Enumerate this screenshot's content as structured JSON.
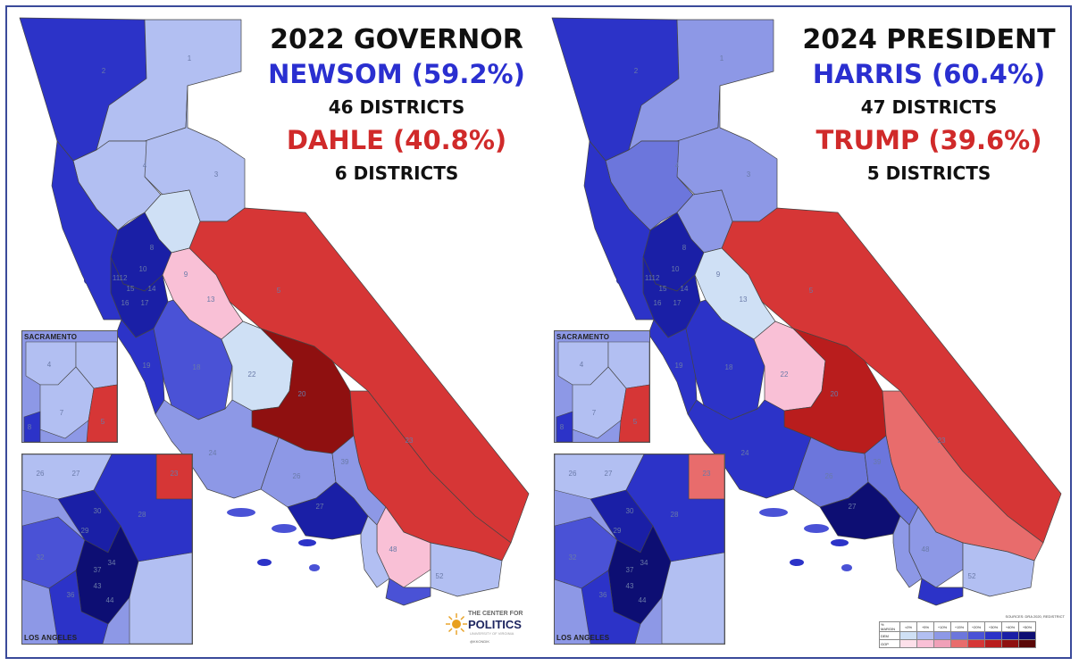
{
  "colors": {
    "dem_50": "#0d0e73",
    "dem_40": "#1a1fa6",
    "dem_30": "#2c33c8",
    "dem_20": "#4a52d6",
    "dem_15": "#6c76dc",
    "dem_10": "#8d98e6",
    "dem_5": "#b2bff2",
    "dem_0": "#cfe0f5",
    "gop_0": "#f9c0d6",
    "gop_15": "#e86c6c",
    "gop_20": "#d63636",
    "gop_30": "#b91d1d",
    "gop_40": "#8f1010",
    "border": "#444444",
    "frame": "#3a4a9a"
  },
  "left": {
    "title": "2022 GOVERNOR",
    "winner": "NEWSOM (59.2%)",
    "winner_districts": "46 DISTRICTS",
    "loser": "DAHLE (40.8%)",
    "loser_districts": "6 DISTRICTS",
    "inset_top_label": "SACRAMENTO",
    "inset_bottom_label": "LOS ANGELES",
    "district_labels": [
      "2",
      "1",
      "3",
      "4",
      "5",
      "8",
      "10",
      "11",
      "12",
      "15",
      "14",
      "16",
      "17",
      "13",
      "9",
      "18",
      "19",
      "22",
      "20",
      "23",
      "24",
      "26",
      "27",
      "48",
      "39",
      "52"
    ],
    "logo": {
      "line1": "THE CENTER FOR",
      "line2": "POLITICS",
      "sub": "UNIVERSITY OF VIRGINIA",
      "handle": "@KKONDIK"
    }
  },
  "right": {
    "title": "2024 PRESIDENT",
    "winner": "HARRIS (60.4%)",
    "winner_districts": "47 DISTRICTS",
    "loser": "TRUMP (39.6%)",
    "loser_districts": "5 DISTRICTS",
    "inset_top_label": "SACRAMENTO",
    "inset_bottom_label": "LOS ANGELES",
    "district_labels": [
      "2",
      "1",
      "3",
      "4",
      "5",
      "8",
      "10",
      "11",
      "12",
      "15",
      "14",
      "16",
      "17",
      "13",
      "9",
      "18",
      "19",
      "22",
      "20",
      "23",
      "24",
      "26",
      "27",
      "48",
      "39",
      "52"
    ],
    "legend": {
      "source": "SOURCES: DRA 2020, REDISTRICT",
      "header": [
        "% MARGIN",
        "<0%",
        "+5%",
        "+10%",
        "+15%",
        "+20%",
        "+30%",
        "+40%",
        "+50%"
      ],
      "rows": [
        "DEM",
        "GOP"
      ]
    }
  },
  "inset_labels": {
    "sac": [
      "4",
      "8",
      "5",
      "7"
    ],
    "la": [
      "26",
      "27",
      "23",
      "28",
      "29",
      "30",
      "32",
      "34",
      "36",
      "37",
      "43",
      "44"
    ]
  }
}
